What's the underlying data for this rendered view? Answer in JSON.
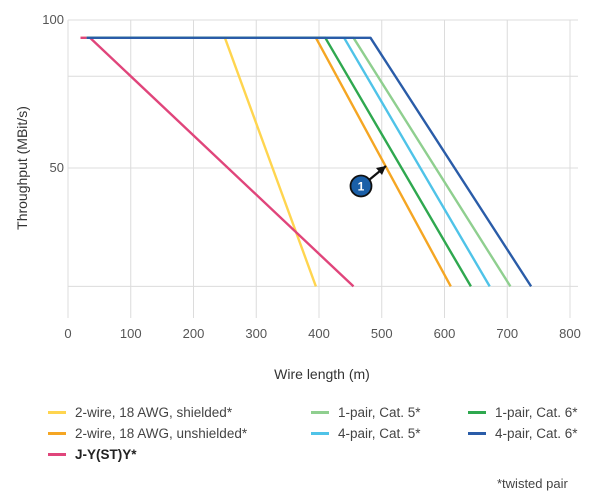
{
  "chart_data": {
    "type": "line",
    "xlabel": "Wire length (m)",
    "ylabel": "Throughput (MBit/s)",
    "xlim": [
      0,
      800
    ],
    "ylim": [
      0,
      100
    ],
    "xticks": [
      "0",
      "100",
      "200",
      "300",
      "400",
      "500",
      "600",
      "700",
      "800"
    ],
    "yticks": [
      "100",
      "50"
    ],
    "grid": true,
    "legend_position": "bottom",
    "series": [
      {
        "name": "2-wire, 18 AWG, shielded*",
        "color": "#ffd54f",
        "bold": false,
        "x": [
          20,
          250,
          395
        ],
        "y": [
          94,
          94,
          10
        ]
      },
      {
        "name": "2-wire, 18 AWG, unshielded*",
        "color": "#f5a623",
        "bold": false,
        "x": [
          30,
          395,
          610
        ],
        "y": [
          94,
          94,
          10
        ]
      },
      {
        "name": "J-Y(ST)Y*",
        "color": "#e0457b",
        "bold": true,
        "x": [
          20,
          35,
          455
        ],
        "y": [
          94,
          94,
          10
        ]
      },
      {
        "name": "1-pair, Cat. 5*",
        "color": "#8fcf8f",
        "bold": false,
        "x": [
          30,
          455,
          705
        ],
        "y": [
          94,
          94,
          10
        ]
      },
      {
        "name": "4-pair, Cat. 5*",
        "color": "#4fc3e8",
        "bold": false,
        "x": [
          30,
          440,
          672
        ],
        "y": [
          94,
          94,
          10
        ]
      },
      {
        "name": "1-pair, Cat. 6*",
        "color": "#2fa84f",
        "bold": false,
        "x": [
          30,
          410,
          642
        ],
        "y": [
          94,
          94,
          10
        ]
      },
      {
        "name": "4-pair, Cat. 6*",
        "color": "#2a5ca8",
        "bold": false,
        "x": [
          30,
          482,
          738
        ],
        "y": [
          94,
          94,
          10
        ]
      }
    ],
    "annotations": [
      {
        "label": "1",
        "x": 490,
        "y": 52,
        "target_x": 520,
        "target_y": 60,
        "color": "#1a5fa8"
      }
    ],
    "footnote": "*twisted pair"
  }
}
